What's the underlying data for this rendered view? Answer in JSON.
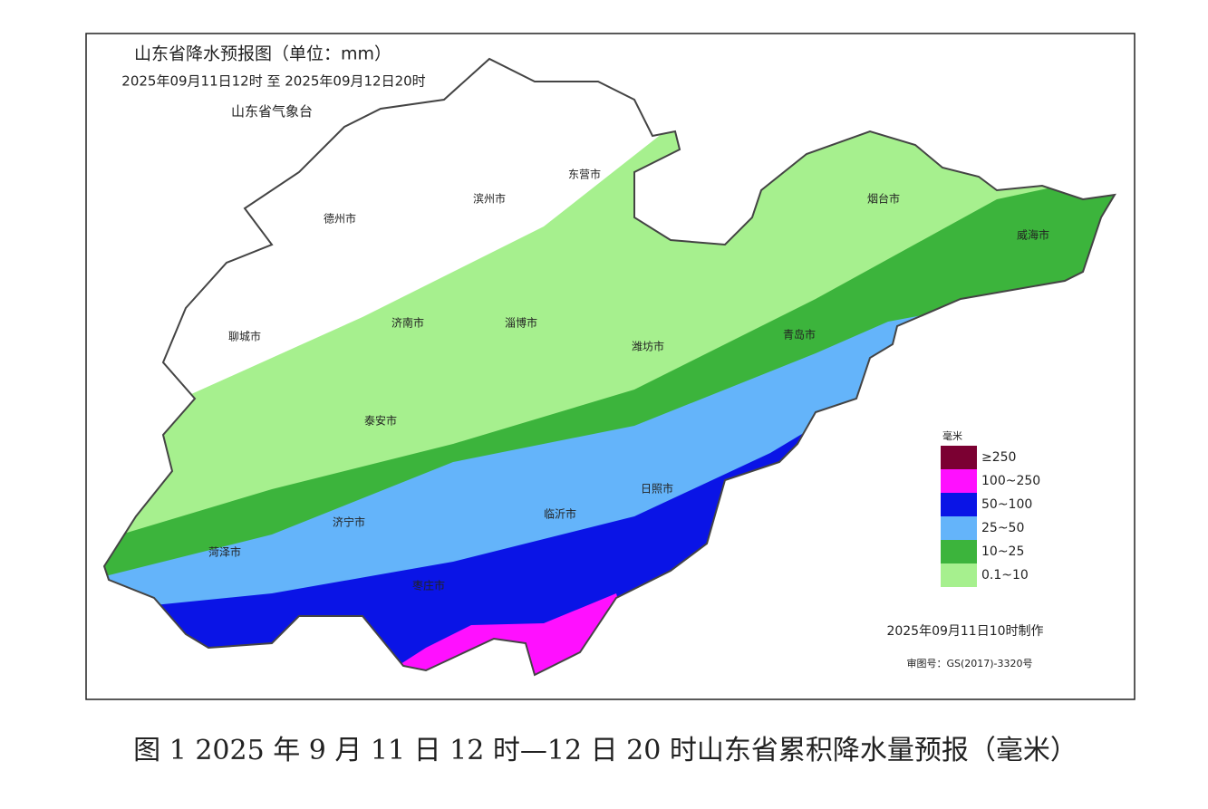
{
  "header": {
    "title": "山东省降水预报图（单位：mm）",
    "period": "2025年09月11日12时 至 2025年09月12日20时",
    "agency": "山东省气象台"
  },
  "cities": [
    "东营市",
    "滨州市",
    "德州市",
    "烟台市",
    "威海市",
    "聊城市",
    "济南市",
    "淄博市",
    "潍坊市",
    "青岛市",
    "泰安市",
    "日照市",
    "济宁市",
    "临沂市",
    "菏泽市",
    "枣庄市"
  ],
  "legend": {
    "title": "毫米",
    "items": [
      {
        "label": "≥250",
        "color": "#7b0032"
      },
      {
        "label": "100~250",
        "color": "#ff10ff"
      },
      {
        "label": "50~100",
        "color": "#0a14e6"
      },
      {
        "label": "25~50",
        "color": "#64b4fa"
      },
      {
        "label": "10~25",
        "color": "#3cb43c"
      },
      {
        "label": "0.1~10",
        "color": "#a6f08e"
      }
    ]
  },
  "footer": {
    "made": "2025年09月11日10时制作",
    "approval": "审图号：GS(2017)-3320号"
  },
  "caption": "图 1 2025 年 9 月 11 日 12 时—12 日 20 时山东省累积降水量预报（毫米）"
}
